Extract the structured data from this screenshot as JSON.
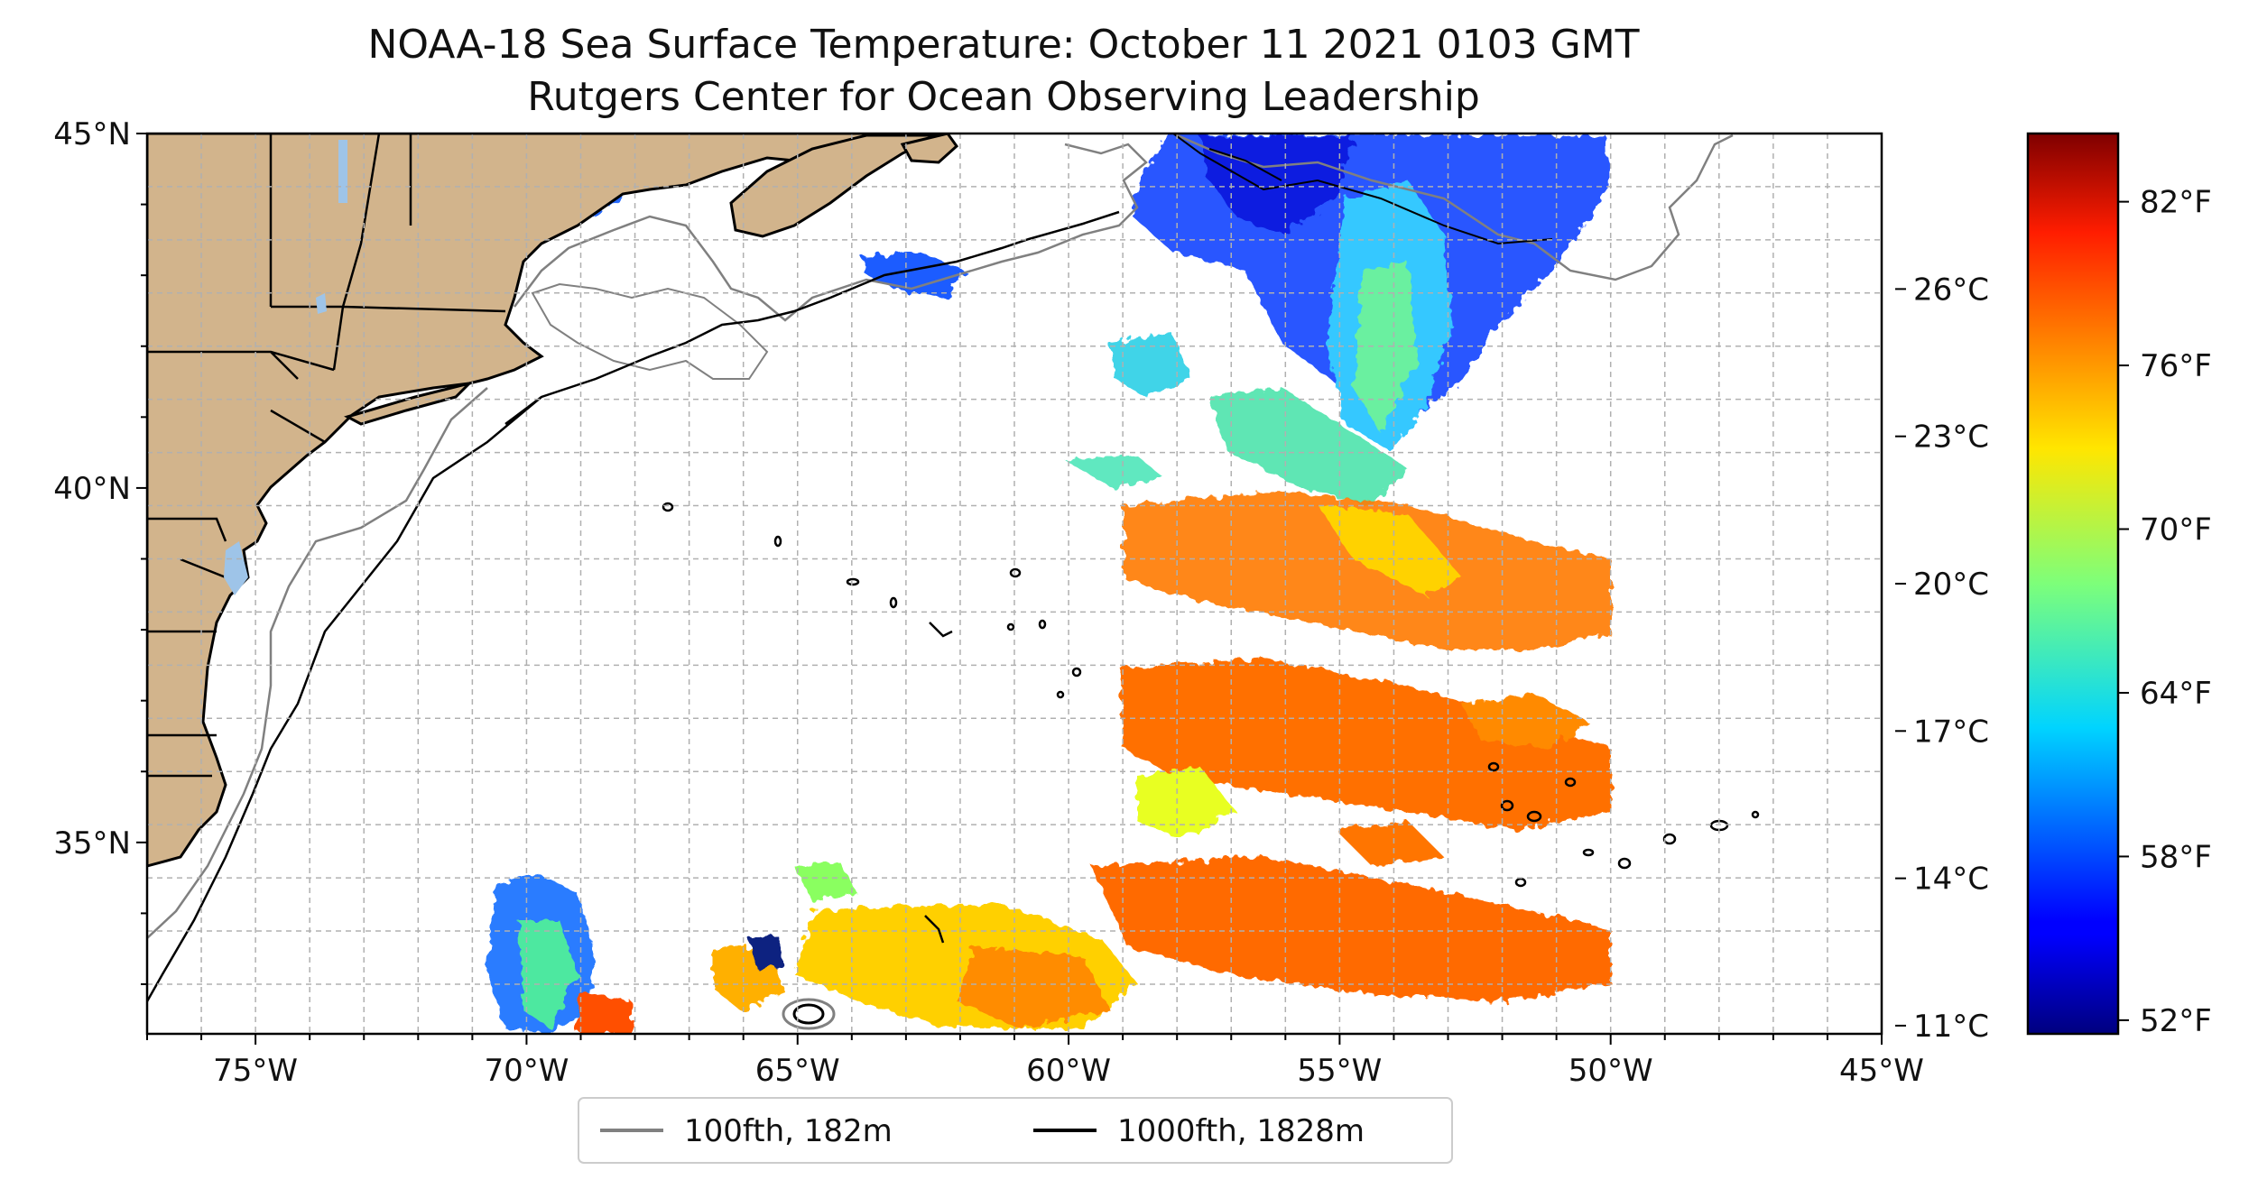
{
  "title": {
    "line1": "NOAA-18 Sea Surface Temperature: October 11 2021 0103 GMT",
    "line2": "Rutgers Center for Ocean Observing Leadership"
  },
  "map": {
    "lon_range": [
      -77,
      -45
    ],
    "lat_range": [
      32.3,
      45
    ],
    "lon_ticks": [
      {
        "value": -75,
        "label": "75°W"
      },
      {
        "value": -70,
        "label": "70°W"
      },
      {
        "value": -65,
        "label": "65°W"
      },
      {
        "value": -60,
        "label": "60°W"
      },
      {
        "value": -55,
        "label": "55°W"
      },
      {
        "value": -50,
        "label": "50°W"
      },
      {
        "value": -45,
        "label": "45°W"
      }
    ],
    "lat_ticks": [
      {
        "value": 45,
        "label": "45°N"
      },
      {
        "value": 40,
        "label": "40°N"
      },
      {
        "value": 35,
        "label": "35°N"
      }
    ],
    "grid": true,
    "colors": {
      "land": "#d2b48c",
      "shelf_100fth": "#808080",
      "slope_1000fth": "#000000",
      "grid": "#b0b0b0",
      "lakes": "#9ec4e8"
    }
  },
  "colorbar": {
    "colormap": "jet",
    "celsius_ticks": [
      {
        "value": 26,
        "label": "26°C"
      },
      {
        "value": 23,
        "label": "23°C"
      },
      {
        "value": 20,
        "label": "20°C"
      },
      {
        "value": 17,
        "label": "17°C"
      },
      {
        "value": 14,
        "label": "14°C"
      },
      {
        "value": 11,
        "label": "11°C"
      }
    ],
    "fahrenheit_ticks": [
      {
        "value": 82,
        "label": "82°F"
      },
      {
        "value": 76,
        "label": "76°F"
      },
      {
        "value": 70,
        "label": "70°F"
      },
      {
        "value": 64,
        "label": "64°F"
      },
      {
        "value": 58,
        "label": "58°F"
      },
      {
        "value": 52,
        "label": "52°F"
      }
    ],
    "range_F": [
      51.5,
      84.5
    ]
  },
  "legend": {
    "placement": "bottom-center",
    "items": [
      {
        "label": "100fth, 182m",
        "color": "#808080"
      },
      {
        "label": "1000fth, 1828m",
        "color": "#000000"
      }
    ]
  }
}
